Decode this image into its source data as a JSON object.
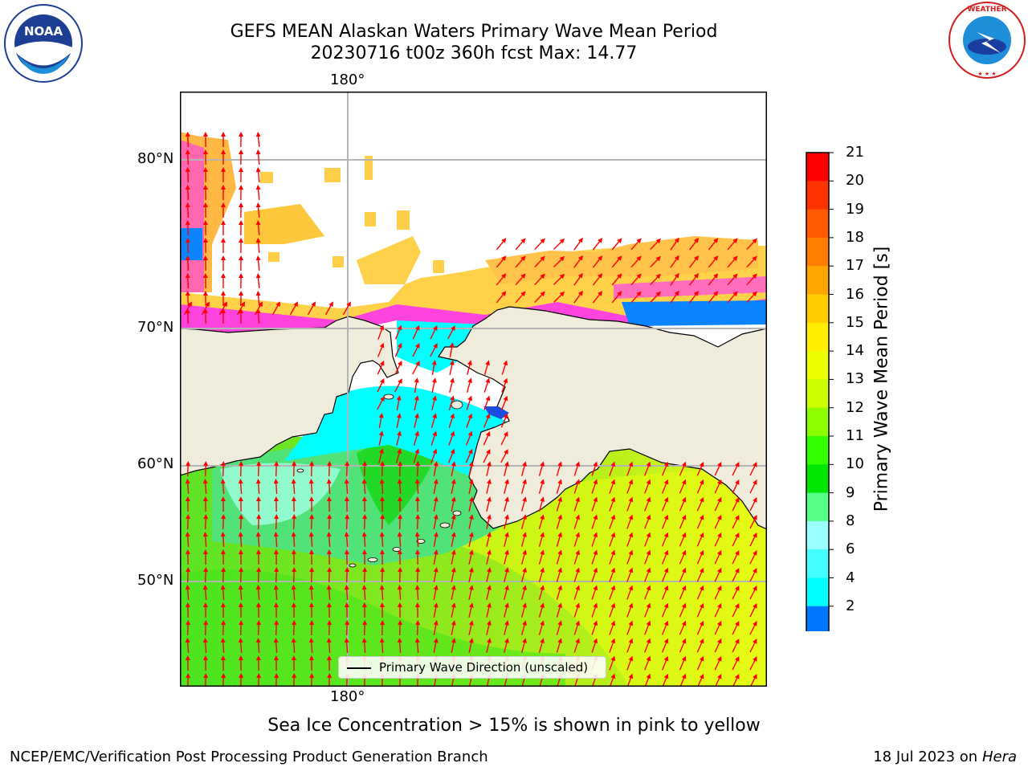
{
  "header": {
    "title": "GEFS MEAN Alaskan Waters Primary Wave Mean Period",
    "subtitle": "20230716 t00z 360h fcst   Max: 14.77"
  },
  "logos": {
    "noaa": "NOAA",
    "nws": "NATIONAL WEATHER SERVICE"
  },
  "map": {
    "lon_label_top": "180°",
    "lon_label_bottom": "180°",
    "lat_labels": [
      "80°N",
      "70°N",
      "60°N",
      "50°N"
    ],
    "legend_label": "Primary Wave Direction (unscaled)",
    "colors": {
      "land": "#efecdc",
      "ocean_green": "#7ed321",
      "ice_pink": "#ff44dd",
      "ice_yellow": "#ffd24a",
      "arrow": "#ff0000"
    }
  },
  "colorbar": {
    "label": "Primary Wave Mean Period [s]",
    "ticks": [
      "21",
      "20",
      "19",
      "18",
      "17",
      "16",
      "15",
      "14",
      "13",
      "12",
      "11",
      "10",
      "9",
      "8",
      "6",
      "4",
      "2"
    ],
    "colors": [
      "#ff0000",
      "#ff3300",
      "#ff5a00",
      "#ff7d00",
      "#ffa500",
      "#ffcc00",
      "#ffee00",
      "#eaff00",
      "#ccff00",
      "#8cff00",
      "#33ff00",
      "#00e600",
      "#55ff88",
      "#99ffff",
      "#44ffff",
      "#00ffff",
      "#0077ff"
    ],
    "extend_color": "#0000ff"
  },
  "note": "Sea Ice Concentration > 15% is shown in pink to yellow",
  "footer": {
    "left": "NCEP/EMC/Verification Post Processing Product Generation Branch",
    "right_date": "18 Jul 2023 on",
    "right_host": "Hera"
  }
}
